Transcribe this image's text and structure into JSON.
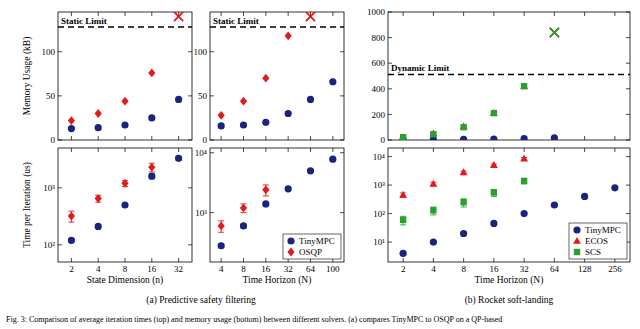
{
  "chart_data": [
    {
      "type": "scatter",
      "ylabel": "Memory Usage (kB)",
      "categories": [
        "2",
        "4",
        "8",
        "16",
        "32"
      ],
      "ylim": [
        0,
        145
      ],
      "yticks": [
        0,
        50,
        100
      ],
      "grid": false,
      "tick_labels": "y",
      "annotations": [
        {
          "text": "Static Limit",
          "value": 128
        }
      ],
      "series": [
        {
          "name": "TinyMPC",
          "color": "#1a237e",
          "marker": "circle",
          "values": [
            13,
            14,
            17,
            25,
            46
          ]
        },
        {
          "name": "OSQP",
          "color": "#e31a1c",
          "marker": [
            "diamond",
            "diamond",
            "diamond",
            "diamond",
            "x"
          ],
          "values": [
            22,
            30,
            44,
            76,
            140
          ]
        }
      ]
    },
    {
      "type": "scatter",
      "ylabel": "Time per Iteration (us)",
      "xlabel": "State Dimension (n)",
      "categories": [
        "2",
        "4",
        "8",
        "16",
        "32"
      ],
      "log": "y",
      "ylim": [
        50,
        5000
      ],
      "yticks": [
        {
          "value": 100,
          "label": "10²"
        },
        {
          "value": 1000,
          "label": "10³"
        }
      ],
      "grid": false,
      "series": [
        {
          "name": "TinyMPC",
          "color": "#1a237e",
          "marker": "circle",
          "values": [
            120,
            210,
            500,
            1600,
            3300
          ],
          "errors": [
            8,
            15,
            30,
            150,
            250
          ]
        },
        {
          "name": "OSQP",
          "color": "#e31a1c",
          "marker": "diamond",
          "values": [
            320,
            650,
            1200,
            2300,
            null
          ],
          "errors": [
            70,
            90,
            150,
            400,
            null
          ]
        }
      ]
    },
    {
      "type": "scatter",
      "categories": [
        "4",
        "8",
        "16",
        "32",
        "64",
        "100"
      ],
      "ylim": [
        0,
        145
      ],
      "yticks": [
        0,
        50,
        100
      ],
      "grid": false,
      "tick_labels": "y",
      "annotations": [
        {
          "text": "Static Limit",
          "value": 128
        }
      ],
      "series": [
        {
          "name": "TinyMPC",
          "color": "#1a237e",
          "marker": "circle",
          "values": [
            16,
            17,
            20,
            30,
            46,
            66
          ]
        },
        {
          "name": "OSQP",
          "color": "#e31a1c",
          "marker": [
            "diamond",
            "diamond",
            "diamond",
            "diamond",
            "x",
            "diamond"
          ],
          "values": [
            28,
            44,
            70,
            118,
            140,
            null
          ]
        }
      ]
    },
    {
      "type": "scatter",
      "xlabel": "Time Horizon (N)",
      "categories": [
        "4",
        "8",
        "16",
        "32",
        "64",
        "100"
      ],
      "log": "y",
      "ylim": [
        150,
        12000
      ],
      "yticks": [
        {
          "value": 1000,
          "label": "10³"
        },
        {
          "value": 10000,
          "label": "10⁴"
        }
      ],
      "grid": false,
      "legend": "lower right",
      "series": [
        {
          "name": "TinyMPC",
          "color": "#1a237e",
          "marker": "circle",
          "values": [
            280,
            600,
            1400,
            2500,
            5000,
            7800
          ],
          "errors": [
            20,
            40,
            80,
            150,
            250,
            400
          ]
        },
        {
          "name": "OSQP",
          "color": "#e31a1c",
          "marker": "diamond",
          "values": [
            600,
            1200,
            2400,
            null,
            null,
            null
          ],
          "errors": [
            130,
            200,
            500,
            null,
            null,
            null
          ]
        }
      ]
    },
    {
      "type": "scatter",
      "categories": [
        "2",
        "4",
        "8",
        "16",
        "32",
        "64",
        "128",
        "256"
      ],
      "ylim": [
        0,
        1000
      ],
      "yticks": [
        0,
        200,
        400,
        600,
        800,
        1000
      ],
      "grid": false,
      "tick_labels": "y",
      "annotations": [
        {
          "text": "Dynamic Limit",
          "value": 512
        }
      ],
      "series": [
        {
          "name": "TinyMPC",
          "color": "#1a237e",
          "marker": "circle",
          "values": [
            3,
            4,
            5,
            7,
            10,
            16,
            null,
            null
          ]
        },
        {
          "name": "ECOS",
          "color": "#e31a1c",
          "marker": [
            "triangle",
            "triangle",
            "triangle",
            "triangle",
            "triangle",
            "x",
            "triangle",
            "triangle"
          ],
          "values": [
            20,
            50,
            105,
            210,
            420,
            840,
            null,
            null
          ]
        },
        {
          "name": "SCS",
          "color": "#2ca02c",
          "marker": [
            "square",
            "square",
            "square",
            "square",
            "square",
            "x",
            "square",
            "square"
          ],
          "values": [
            22,
            45,
            100,
            210,
            420,
            840,
            null,
            null
          ]
        }
      ]
    },
    {
      "type": "scatter",
      "xlabel": "Time Horizon (N)",
      "categories": [
        "2",
        "4",
        "8",
        "16",
        "32",
        "64",
        "128",
        "256"
      ],
      "log": "y",
      "ylim": [
        2,
        20000
      ],
      "yticks": [
        {
          "value": 10,
          "label": "10¹"
        },
        {
          "value": 100,
          "label": "10²"
        },
        {
          "value": 1000,
          "label": "10³"
        },
        {
          "value": 10000,
          "label": "10⁴"
        }
      ],
      "grid": false,
      "legend": "lower right",
      "series": [
        {
          "name": "TinyMPC",
          "color": "#1a237e",
          "marker": "circle",
          "values": [
            4,
            10,
            20,
            45,
            100,
            200,
            400,
            800
          ],
          "errors": [
            0.5,
            1,
            2,
            4,
            8,
            15,
            30,
            60
          ]
        },
        {
          "name": "ECOS",
          "color": "#e31a1c",
          "marker": "triangle",
          "values": [
            450,
            1100,
            2800,
            5000,
            8500,
            null,
            null,
            null
          ],
          "errors": [
            80,
            150,
            300,
            500,
            800,
            null,
            null,
            null
          ]
        },
        {
          "name": "SCS",
          "color": "#2ca02c",
          "marker": "square",
          "values": [
            60,
            130,
            250,
            550,
            1400,
            null,
            null,
            null
          ],
          "errors": [
            20,
            40,
            80,
            150,
            300,
            null,
            null,
            null
          ]
        }
      ]
    }
  ],
  "subcaptions": [
    "(a) Predictive safety filtering",
    "(b) Rocket soft-landing"
  ],
  "caption": "Fig. 3: Comparison of average iteration times (top) and memory usage (bottom) between different solvers. (a) compares TinyMPC to OSQP on a QP-based"
}
